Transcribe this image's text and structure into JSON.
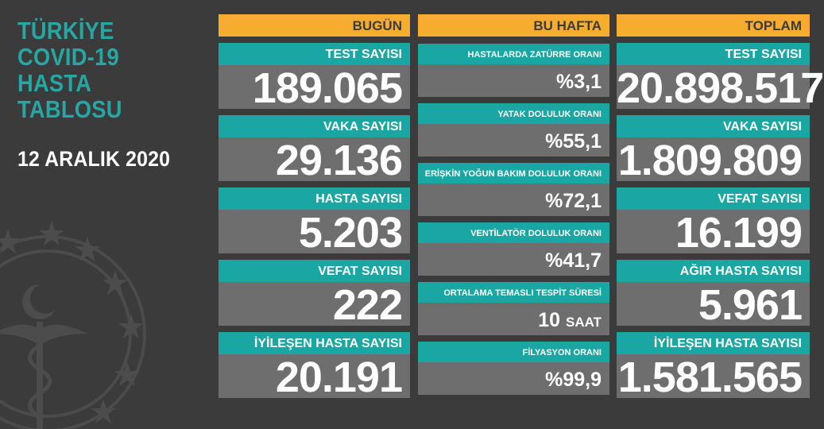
{
  "title": "TÜRKİYE\nCOVID-19\nHASTA\nTABLOSU",
  "date": "12 ARALIK 2020",
  "colors": {
    "background": "#3b3b3b",
    "teal": "#1aa7a3",
    "orange": "#f6ad2f",
    "value_bg": "#6e6e6e"
  },
  "icons": [
    "ministry-of-health-emblem-icon"
  ],
  "today": {
    "header": "BUGÜN",
    "cards": [
      {
        "label": "TEST SAYISI",
        "value": "189.065"
      },
      {
        "label": "VAKA SAYISI",
        "value": "29.136"
      },
      {
        "label": "HASTA SAYISI",
        "value": "5.203"
      },
      {
        "label": "VEFAT SAYISI",
        "value": "222"
      },
      {
        "label": "İYİLEŞEN HASTA SAYISI",
        "value": "20.191"
      }
    ]
  },
  "week": {
    "header": "BU HAFTA",
    "cards": [
      {
        "label": "HASTALARDA ZATÜRRE ORANI",
        "value": "%3,1"
      },
      {
        "label": "YATAK DOLULUK ORANI",
        "value": "%55,1"
      },
      {
        "label": "ERİŞKİN YOĞUN BAKIM DOLULUK ORANI",
        "value": "%72,1"
      },
      {
        "label": "VENTİLATÖR DOLULUK ORANI",
        "value": "%41,7"
      },
      {
        "label": "ORTALAMA TEMASLI TESPİT SÜRESİ",
        "value": "10",
        "unit": "SAAT"
      },
      {
        "label": "FİLYASYON ORANI",
        "value": "%99,9"
      }
    ]
  },
  "total": {
    "header": "TOPLAM",
    "cards": [
      {
        "label": "TEST SAYISI",
        "value": "20.898.517"
      },
      {
        "label": "VAKA SAYISI",
        "value": "1.809.809"
      },
      {
        "label": "VEFAT SAYISI",
        "value": "16.199"
      },
      {
        "label": "AĞIR HASTA SAYISI",
        "value": "5.961"
      },
      {
        "label": "İYİLEŞEN HASTA SAYISI",
        "value": "1.581.565"
      }
    ]
  }
}
